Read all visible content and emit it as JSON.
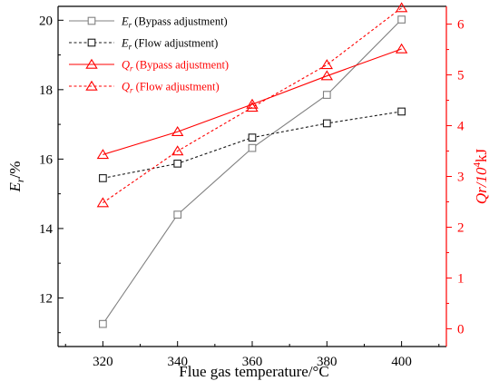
{
  "chart_data": {
    "type": "line",
    "x": [
      320,
      340,
      360,
      380,
      400
    ],
    "xlabel": "Flue gas temperature/°C",
    "xlim": [
      308,
      412
    ],
    "xticks": [
      "320",
      "340",
      "360",
      "380",
      "400"
    ],
    "y_left": {
      "label_main": "E",
      "label_sub": "r",
      "label_rest": "/%",
      "lim": [
        10.6,
        20.4
      ],
      "ticks": [
        "12",
        "14",
        "16",
        "18",
        "20"
      ],
      "color": "#000000"
    },
    "y_right": {
      "label_main": "Qr/10",
      "label_sup": "4",
      "label_rest": "kJ",
      "lim": [
        -0.35,
        6.35
      ],
      "ticks": [
        "0",
        "1",
        "2",
        "3",
        "4",
        "5",
        "6"
      ],
      "color": "#ff0000"
    },
    "series": [
      {
        "name_main": "E",
        "name_sub": "r",
        "name_rest": " (Bypass adjustment)",
        "axis": "left",
        "values": [
          11.25,
          14.4,
          16.32,
          17.85,
          20.02
        ],
        "color": "#808080",
        "dash": "solid",
        "marker": "square"
      },
      {
        "name_main": "E",
        "name_sub": "r",
        "name_rest": " (Flow adjustment)",
        "axis": "left",
        "values": [
          15.45,
          15.87,
          16.62,
          17.03,
          17.37
        ],
        "color": "#1a1a1a",
        "dash": "dotted",
        "marker": "square"
      },
      {
        "name_main": "Q",
        "name_sub": "r",
        "name_rest": " (Bypass adjustment)",
        "axis": "right",
        "values": [
          3.43,
          3.88,
          4.42,
          4.98,
          5.51
        ],
        "color": "#ff0000",
        "dash": "solid",
        "marker": "triangle"
      },
      {
        "name_main": "Q",
        "name_sub": "r",
        "name_rest": " (Flow adjustment)",
        "axis": "right",
        "values": [
          2.48,
          3.5,
          4.36,
          5.2,
          6.32
        ],
        "color": "#ff0000",
        "dash": "dotted",
        "marker": "triangle"
      }
    ],
    "legend_position": "top-left",
    "grid": false
  }
}
